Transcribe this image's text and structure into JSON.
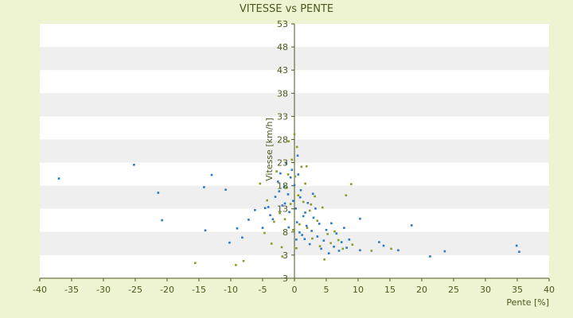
{
  "chart_data": {
    "type": "scatter",
    "title": "VITESSE vs PENTE",
    "xlabel": "Pente [%]",
    "ylabel": "Vitesse [km/h]",
    "xlim": [
      -40,
      40
    ],
    "ylim": [
      3,
      53
    ],
    "x_ticks": [
      "-40",
      "-35",
      "-30",
      "-25",
      "-20",
      "-15",
      "-10",
      "-5",
      "0",
      "5",
      "10",
      "15",
      "20",
      "25",
      "30",
      "35",
      "40"
    ],
    "y_ticks": [
      "3",
      "3",
      "8",
      "13",
      "18",
      "23",
      "28",
      "33",
      "38",
      "43",
      "48",
      "53"
    ],
    "grid": true,
    "legend": "none",
    "colors": {
      "background": "#eef3d2",
      "plot_band_light": "#ffffff",
      "plot_band_dark": "#efefef",
      "axis": "#4a5a1e",
      "series_a": "#2b78c8",
      "series_b": "#8a9a22"
    },
    "series": [
      {
        "color": "#2b78c8",
        "points": [
          [
            -37.0,
            22.6
          ],
          [
            -25.2,
            25.3
          ],
          [
            -21.4,
            19.8
          ],
          [
            -20.8,
            14.4
          ],
          [
            -14.2,
            20.9
          ],
          [
            -14.0,
            12.4
          ],
          [
            -13.0,
            23.3
          ],
          [
            -10.8,
            20.4
          ],
          [
            -10.2,
            10.0
          ],
          [
            -9.0,
            12.8
          ],
          [
            -8.2,
            11.0
          ],
          [
            -7.2,
            14.5
          ],
          [
            -6.2,
            16.4
          ],
          [
            -5.0,
            12.9
          ],
          [
            -4.6,
            16.8
          ],
          [
            -4.1,
            17.0
          ],
          [
            -3.8,
            15.4
          ],
          [
            -3.4,
            14.6
          ],
          [
            -3.0,
            19.0
          ],
          [
            -2.6,
            22.0
          ],
          [
            -2.2,
            23.6
          ],
          [
            -1.9,
            17.3
          ],
          [
            -1.6,
            21.0
          ],
          [
            -1.3,
            25.6
          ],
          [
            -1.0,
            19.5
          ],
          [
            -0.8,
            16.0
          ],
          [
            -0.6,
            22.8
          ],
          [
            -0.4,
            24.3
          ],
          [
            -0.2,
            18.2
          ],
          [
            0.0,
            21.3
          ],
          [
            0.2,
            16.7
          ],
          [
            0.3,
            10.6
          ],
          [
            0.4,
            14.0
          ],
          [
            0.6,
            23.4
          ],
          [
            0.8,
            12.0
          ],
          [
            1.0,
            20.3
          ],
          [
            1.2,
            11.5
          ],
          [
            1.4,
            15.2
          ],
          [
            1.6,
            10.7
          ],
          [
            1.9,
            13.3
          ],
          [
            2.1,
            17.8
          ],
          [
            2.4,
            9.7
          ],
          [
            2.7,
            12.3
          ],
          [
            3.0,
            14.9
          ],
          [
            3.3,
            16.7
          ],
          [
            3.6,
            11.2
          ],
          [
            3.9,
            13.7
          ],
          [
            4.2,
            8.8
          ],
          [
            4.6,
            10.4
          ],
          [
            5.0,
            12.5
          ],
          [
            5.4,
            7.9
          ],
          [
            5.8,
            13.8
          ],
          [
            6.2,
            9.2
          ],
          [
            6.6,
            11.8
          ],
          [
            7.0,
            8.4
          ],
          [
            7.4,
            10.1
          ],
          [
            7.8,
            12.9
          ],
          [
            8.2,
            9.0
          ],
          [
            8.6,
            10.6
          ],
          [
            10.3,
            8.5
          ],
          [
            10.3,
            14.7
          ],
          [
            13.3,
            10.1
          ],
          [
            14.0,
            9.4
          ],
          [
            16.3,
            8.5
          ],
          [
            18.4,
            13.4
          ],
          [
            21.3,
            7.3
          ],
          [
            23.6,
            8.3
          ],
          [
            34.9,
            9.4
          ],
          [
            35.3,
            8.2
          ],
          [
            -1.5,
            17.7
          ],
          [
            0.5,
            27.1
          ],
          [
            0.9,
            18.9
          ],
          [
            1.7,
            15.9
          ],
          [
            -2.4,
            20.1
          ],
          [
            2.9,
            19.6
          ],
          [
            -0.9,
            13.0
          ]
        ]
      },
      {
        "color": "#8a9a22",
        "points": [
          [
            -15.6,
            6.0
          ],
          [
            -9.2,
            5.6
          ],
          [
            -8.0,
            6.4
          ],
          [
            -5.4,
            21.6
          ],
          [
            -4.3,
            18.3
          ],
          [
            -3.6,
            9.8
          ],
          [
            -2.8,
            24.0
          ],
          [
            -2.3,
            15.8
          ],
          [
            -1.9,
            7.3
          ],
          [
            -1.5,
            14.6
          ],
          [
            -1.2,
            20.8
          ],
          [
            -0.9,
            29.9
          ],
          [
            -0.6,
            17.6
          ],
          [
            -0.4,
            26.3
          ],
          [
            -0.2,
            12.5
          ],
          [
            0.1,
            23.0
          ],
          [
            0.4,
            28.8
          ],
          [
            0.6,
            19.3
          ],
          [
            0.8,
            13.6
          ],
          [
            1.1,
            24.9
          ],
          [
            1.4,
            18.0
          ],
          [
            1.7,
            21.6
          ],
          [
            2.0,
            12.9
          ],
          [
            2.4,
            16.3
          ],
          [
            2.8,
            10.8
          ],
          [
            3.2,
            19.1
          ],
          [
            3.6,
            14.3
          ],
          [
            4.0,
            9.3
          ],
          [
            4.4,
            16.9
          ],
          [
            4.7,
            6.7
          ],
          [
            5.2,
            11.7
          ],
          [
            5.7,
            9.9
          ],
          [
            6.3,
            12.2
          ],
          [
            6.9,
            10.5
          ],
          [
            7.6,
            8.8
          ],
          [
            8.1,
            19.3
          ],
          [
            8.9,
            21.5
          ],
          [
            9.1,
            9.6
          ],
          [
            12.1,
            8.4
          ],
          [
            15.2,
            8.8
          ],
          [
            -4.7,
            11.9
          ],
          [
            -2.0,
            9.1
          ],
          [
            0.0,
            31.3
          ],
          [
            1.9,
            25.0
          ],
          [
            -1.0,
            23.4
          ],
          [
            0.3,
            8.9
          ],
          [
            2.6,
            17.5
          ],
          [
            -3.2,
            14.1
          ]
        ]
      }
    ]
  }
}
